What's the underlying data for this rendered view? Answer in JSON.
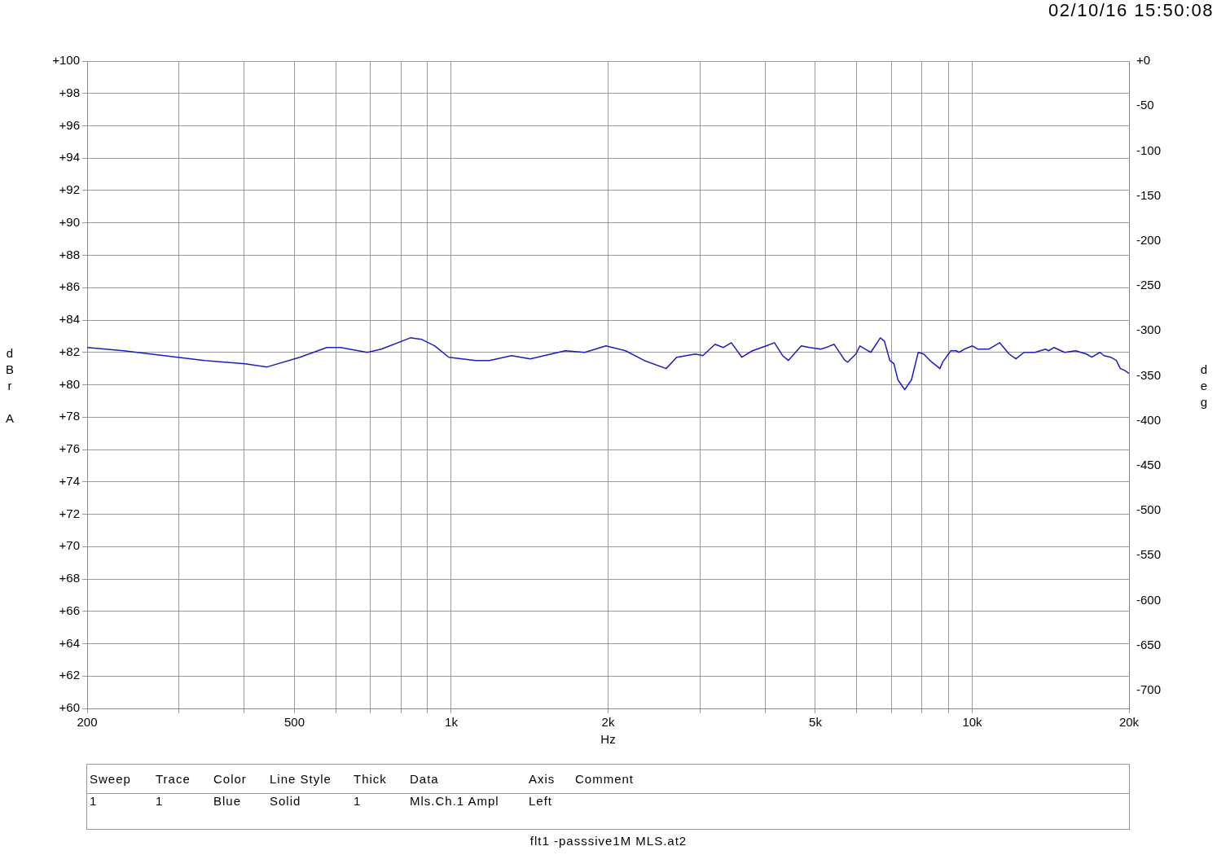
{
  "chart_data": {
    "type": "line",
    "xlabel": "Hz",
    "ylabel": "dBr A",
    "y2label": "deg",
    "log": "x",
    "grid": true,
    "legend": false,
    "marker": "none",
    "line_style": "solid",
    "xlim": [
      200,
      20000
    ],
    "ylim": [
      60,
      100
    ],
    "y2lim": [
      -720,
      0
    ],
    "xticks": [
      200,
      {
        "value": 300,
        "label": null
      },
      {
        "value": 400,
        "label": null
      },
      500,
      {
        "value": 600,
        "label": null
      },
      {
        "value": 700,
        "label": null
      },
      {
        "value": 800,
        "label": null
      },
      {
        "value": 900,
        "label": null
      },
      {
        "value": 1000,
        "label": "1k"
      },
      {
        "value": 2000,
        "label": "2k"
      },
      {
        "value": 3000,
        "label": null
      },
      {
        "value": 4000,
        "label": null
      },
      {
        "value": 5000,
        "label": "5k"
      },
      {
        "value": 6000,
        "label": null
      },
      {
        "value": 7000,
        "label": null
      },
      {
        "value": 8000,
        "label": null
      },
      {
        "value": 9000,
        "label": null
      },
      {
        "value": 10000,
        "label": "10k"
      },
      {
        "value": 20000,
        "label": "20k"
      }
    ],
    "yticks": [
      {
        "value": 60,
        "label": "+60"
      },
      {
        "value": 62,
        "label": "+62"
      },
      {
        "value": 64,
        "label": "+64"
      },
      {
        "value": 66,
        "label": "+66"
      },
      {
        "value": 68,
        "label": "+68"
      },
      {
        "value": 70,
        "label": "+70"
      },
      {
        "value": 72,
        "label": "+72"
      },
      {
        "value": 74,
        "label": "+74"
      },
      {
        "value": 76,
        "label": "+76"
      },
      {
        "value": 78,
        "label": "+78"
      },
      {
        "value": 80,
        "label": "+80"
      },
      {
        "value": 82,
        "label": "+82"
      },
      {
        "value": 84,
        "label": "+84"
      },
      {
        "value": 86,
        "label": "+86"
      },
      {
        "value": 88,
        "label": "+88"
      },
      {
        "value": 90,
        "label": "+90"
      },
      {
        "value": 92,
        "label": "+92"
      },
      {
        "value": 94,
        "label": "+94"
      },
      {
        "value": 96,
        "label": "+96"
      },
      {
        "value": 98,
        "label": "+98"
      },
      {
        "value": 100,
        "label": "+100"
      }
    ],
    "y2ticks": [
      {
        "value": 0,
        "label": "+0"
      },
      -50,
      -100,
      -150,
      -200,
      -250,
      -300,
      -350,
      -400,
      -450,
      -500,
      -550,
      -600,
      -650,
      -700
    ],
    "annotations": [
      "02/10/16 15:50:08",
      "Sweep",
      "Trace",
      "Color",
      "Line Style",
      "Thick",
      "Data",
      "Axis",
      "Comment",
      "1",
      "1",
      "Blue",
      "Solid",
      "1",
      "Mls.Ch.1 Ampl",
      "Left",
      "flt1 -passsive1M MLS.at2"
    ],
    "series": [
      {
        "color": "#1c1cc0",
        "x": [
          200,
          235,
          281,
          336,
          402,
          443,
          512,
          577,
          613,
          690,
          734,
          835,
          878,
          930,
          989,
          1114,
          1184,
          1305,
          1418,
          1507,
          1655,
          1804,
          1981,
          2160,
          2346,
          2585,
          2709,
          2943,
          3040,
          3209,
          3326,
          3448,
          3613,
          3786,
          4024,
          4172,
          4325,
          4436,
          4697,
          4870,
          5121,
          5240,
          5432,
          5697,
          5767,
          5980,
          6088,
          6236,
          6387,
          6661,
          6783,
          6948,
          7074,
          7202,
          7420,
          7645,
          7877,
          8068,
          8362,
          8670,
          8775,
          9097,
          9318,
          9430,
          9658,
          10010,
          10254,
          10758,
          11287,
          11771,
          12131,
          12576,
          13192,
          13839,
          14006,
          14345,
          15050,
          15790,
          16565,
          16967,
          17587,
          17906,
          18450,
          18905,
          19247,
          19596,
          20000
        ],
        "values": [
          82.3,
          82.1,
          81.8,
          81.5,
          81.3,
          81.1,
          81.7,
          82.3,
          82.3,
          82.0,
          82.2,
          82.9,
          82.8,
          82.4,
          81.7,
          81.5,
          81.5,
          81.8,
          81.6,
          81.8,
          82.1,
          82.0,
          82.4,
          82.1,
          81.5,
          81.0,
          81.7,
          81.9,
          81.8,
          82.5,
          82.3,
          82.6,
          81.7,
          82.1,
          82.4,
          82.6,
          81.8,
          81.5,
          82.4,
          82.3,
          82.2,
          82.3,
          82.5,
          81.5,
          81.4,
          81.9,
          82.4,
          82.2,
          82.0,
          82.9,
          82.7,
          81.5,
          81.3,
          80.3,
          79.7,
          80.3,
          82.0,
          81.9,
          81.4,
          81.0,
          81.4,
          82.1,
          82.1,
          82.0,
          82.2,
          82.4,
          82.2,
          82.2,
          82.6,
          81.9,
          81.6,
          82.0,
          82.0,
          82.2,
          82.1,
          82.3,
          82.0,
          82.1,
          81.9,
          81.7,
          82.0,
          81.8,
          81.7,
          81.5,
          81.0,
          80.9,
          80.7
        ]
      }
    ]
  }
}
